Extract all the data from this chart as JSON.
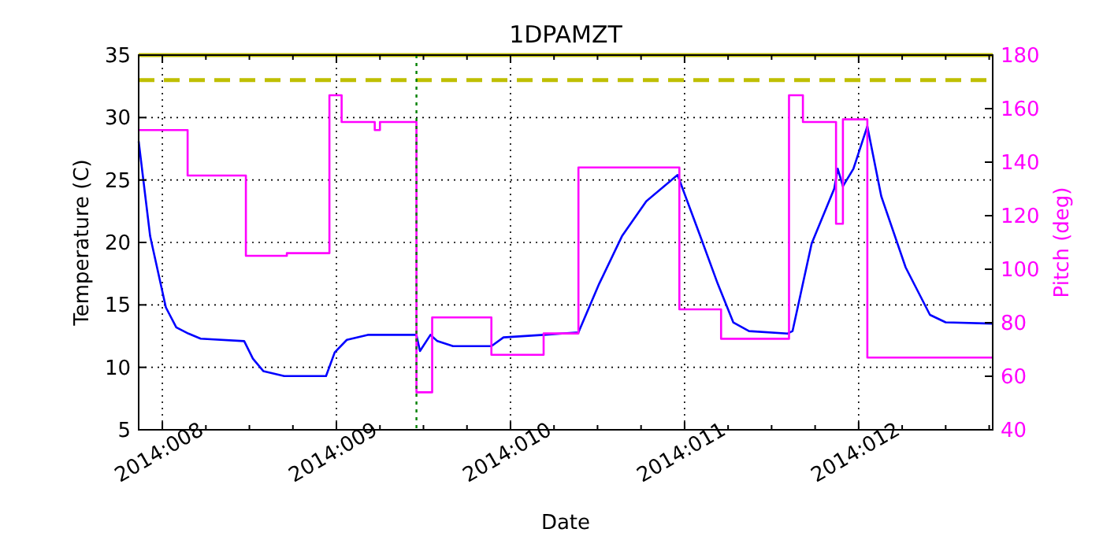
{
  "chart_data": {
    "type": "line",
    "title": "1DPAMZT",
    "xlabel": "Date",
    "ylabel": "Temperature (C)",
    "y2label": "Pitch (deg)",
    "xlim": [
      "2014-01-07T20:44",
      "2014-01-12T18:29"
    ],
    "xticks": [
      {
        "value": "2014-01-08",
        "label": "2014:008"
      },
      {
        "value": "2014-01-08T06:00",
        "label": null
      },
      {
        "value": "2014-01-08T12:00",
        "label": null
      },
      {
        "value": "2014-01-08T18:00",
        "label": null
      },
      {
        "value": "2014-01-09",
        "label": "2014:009"
      },
      {
        "value": "2014-01-09T06:00",
        "label": null
      },
      {
        "value": "2014-01-09T12:00",
        "label": null
      },
      {
        "value": "2014-01-09T18:00",
        "label": null
      },
      {
        "value": "2014-01-10",
        "label": "2014:010"
      },
      {
        "value": "2014-01-10T06:00",
        "label": null
      },
      {
        "value": "2014-01-10T12:00",
        "label": null
      },
      {
        "value": "2014-01-10T18:00",
        "label": null
      },
      {
        "value": "2014-01-11",
        "label": "2014:011"
      },
      {
        "value": "2014-01-11T06:00",
        "label": null
      },
      {
        "value": "2014-01-11T12:00",
        "label": null
      },
      {
        "value": "2014-01-11T18:00",
        "label": null
      },
      {
        "value": "2014-01-12",
        "label": "2014:012"
      },
      {
        "value": "2014-01-12T06:00",
        "label": null
      },
      {
        "value": "2014-01-12T12:00",
        "label": null
      },
      {
        "value": "2014-01-12T18:00",
        "label": null
      }
    ],
    "ylim": [
      5,
      35
    ],
    "yticks": [
      5,
      10,
      15,
      20,
      25,
      30,
      35
    ],
    "y2lim": [
      40,
      180
    ],
    "y2ticks": [
      40,
      60,
      80,
      100,
      120,
      140,
      160,
      180
    ],
    "grid": true,
    "series": [
      {
        "color": "#0000ff",
        "x": [
          "2014-01-07T20:44",
          "2014-01-07T22:19",
          "2014-01-08T00:29",
          "2014-01-08T01:55",
          "2014-01-08T03:36",
          "2014-01-08T05:17",
          "2014-01-08T11:17",
          "2014-01-08T12:29",
          "2014-01-08T13:55",
          "2014-01-08T16:48",
          "2014-01-08T22:34",
          "2014-01-08T23:46",
          "2014-01-09T01:26",
          "2014-01-09T04:19",
          "2014-01-09T11:02",
          "2014-01-09T11:31",
          "2014-01-09T12:58",
          "2014-01-09T13:55",
          "2014-01-09T16:05",
          "2014-01-09T21:22",
          "2014-01-09T23:02",
          "2014-01-10T04:34",
          "2014-01-10T09:22",
          "2014-01-10T12:14",
          "2014-01-10T15:22",
          "2014-01-10T18:43",
          "2014-01-10T23:02",
          "2014-01-11T02:10",
          "2014-01-11T04:34",
          "2014-01-11T06:43",
          "2014-01-11T08:53",
          "2014-01-11T14:10",
          "2014-01-11T14:53",
          "2014-01-11T17:31",
          "2014-01-11T20:38",
          "2014-01-11T21:07",
          "2014-01-11T21:50",
          "2014-01-11T23:17",
          "2014-01-12T01:12",
          "2014-01-12T03:07",
          "2014-01-12T06:29",
          "2014-01-12T09:50",
          "2014-01-12T12:00",
          "2014-01-12T18:29"
        ],
        "values": [
          28.1,
          20.5,
          14.8,
          13.2,
          12.7,
          12.3,
          12.1,
          10.7,
          9.7,
          9.3,
          9.3,
          11.2,
          12.2,
          12.6,
          12.6,
          11.3,
          12.6,
          12.1,
          11.7,
          11.7,
          12.4,
          12.6,
          12.8,
          16.7,
          20.5,
          23.3,
          25.4,
          20.5,
          16.7,
          13.6,
          12.9,
          12.7,
          12.9,
          19.9,
          24.3,
          25.9,
          24.5,
          25.9,
          29.3,
          23.7,
          18,
          14.2,
          13.6,
          13.5
        ]
      },
      {
        "type": "step",
        "axis": "y2",
        "color": "#ff00ff",
        "x": [
          "2014-01-07T20:44",
          "2014-01-08T03:29",
          "2014-01-08T11:31",
          "2014-01-08T17:10",
          "2014-01-08T23:02",
          "2014-01-09T00:43",
          "2014-01-09T05:17",
          "2014-01-09T06:00",
          "2014-01-09T11:02",
          "2014-01-09T13:12",
          "2014-01-09T21:22",
          "2014-01-10T04:34",
          "2014-01-10T09:22",
          "2014-01-10T23:17",
          "2014-01-11T05:02",
          "2014-01-11T14:24",
          "2014-01-11T16:19",
          "2014-01-11T20:53",
          "2014-01-11T21:50",
          "2014-01-12T01:12",
          "2014-01-12T18:29"
        ],
        "values": [
          152,
          135,
          105,
          106,
          165,
          155,
          152,
          155,
          54,
          82,
          68,
          76,
          138,
          85,
          74,
          165,
          155,
          117,
          156,
          67,
          67
        ]
      }
    ],
    "ref_lines": [
      {
        "axis": "y",
        "value": 33,
        "color": "#bfbf00",
        "line_style": "dashed"
      },
      {
        "axis": "y",
        "value": 35,
        "color": "#bfbf00",
        "line_style": "solid"
      },
      {
        "axis": "x",
        "value": "2014-01-09T11:02",
        "color": "#008000",
        "line_style": "dotted"
      }
    ]
  }
}
